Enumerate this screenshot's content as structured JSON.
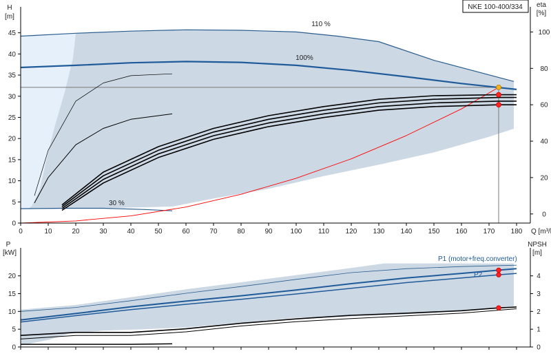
{
  "chart_data": [
    {
      "panel": "head",
      "type": "line",
      "title": "NKE 100-400/334",
      "xlabel": "Q [m³/h]",
      "ylabel_left": "H\n[m]",
      "ylabel_right": "eta\n[%]",
      "x_ticks": [
        0,
        10,
        20,
        30,
        40,
        50,
        60,
        70,
        80,
        90,
        100,
        110,
        120,
        130,
        140,
        150,
        160,
        170,
        180
      ],
      "y_ticks_left": [
        0,
        5,
        10,
        15,
        20,
        25,
        30,
        35,
        40,
        45
      ],
      "y_ticks_right": [
        0,
        20,
        40,
        60,
        80,
        100
      ],
      "xlim": [
        0,
        185
      ],
      "ylim": [
        0,
        49.5
      ],
      "eta_ylim": [
        -5,
        110
      ],
      "grid": false,
      "operating_point": {
        "q": 173.5,
        "h": 32.1
      },
      "envelope": [
        [
          0,
          44.2
        ],
        [
          20,
          44.9
        ],
        [
          40,
          45.4
        ],
        [
          60,
          45.7
        ],
        [
          80,
          45.6
        ],
        [
          100,
          45.2
        ],
        [
          115,
          44.2
        ],
        [
          130,
          42.9
        ],
        [
          150,
          38.5
        ],
        [
          179,
          33.5
        ],
        [
          179,
          22.3
        ],
        [
          170,
          20.4
        ],
        [
          150,
          16.7
        ],
        [
          130,
          13.8
        ],
        [
          110,
          11.1
        ],
        [
          90,
          8.1
        ],
        [
          70,
          5.8
        ],
        [
          55,
          3.9
        ],
        [
          30,
          3.5
        ],
        [
          0,
          3.3
        ]
      ],
      "envelope_inner_cut": [
        [
          0,
          44.2
        ],
        [
          5,
          44.2
        ],
        [
          20,
          44.9
        ],
        [
          19,
          39.0
        ],
        [
          16,
          31.0
        ],
        [
          12,
          22.0
        ],
        [
          9,
          14.0
        ],
        [
          7,
          8.0
        ],
        [
          4,
          4.0
        ],
        [
          3,
          3.5
        ],
        [
          0,
          3.3
        ]
      ],
      "series": [
        {
          "name": "110 %",
          "label": "110 %",
          "color": "#2a5d8f",
          "width": 1.2,
          "points": [
            [
              0,
              44.2
            ],
            [
              20,
              44.9
            ],
            [
              40,
              45.4
            ],
            [
              60,
              45.7
            ],
            [
              80,
              45.6
            ],
            [
              100,
              45.2
            ],
            [
              115,
              44.2
            ],
            [
              130,
              42.9
            ],
            [
              150,
              38.5
            ],
            [
              179,
              33.5
            ]
          ]
        },
        {
          "name": "100 %",
          "label": "100%",
          "color": "#1f5a99",
          "width": 2.2,
          "points": [
            [
              0,
              36.8
            ],
            [
              20,
              37.3
            ],
            [
              40,
              37.9
            ],
            [
              60,
              38.2
            ],
            [
              80,
              38.0
            ],
            [
              100,
              37.3
            ],
            [
              120,
              36.1
            ],
            [
              140,
              34.6
            ],
            [
              160,
              33.0
            ],
            [
              180,
              31.6
            ]
          ]
        },
        {
          "name": "30 %",
          "label": "30 %",
          "color": "#2a5d8f",
          "width": 1.2,
          "points": [
            [
              0,
              3.4
            ],
            [
              15,
              3.5
            ],
            [
              30,
              3.5
            ],
            [
              45,
              3.2
            ],
            [
              55,
              2.9
            ]
          ]
        },
        {
          "name": "system curve",
          "color": "#ff0000",
          "width": 0.9,
          "points": [
            [
              0,
              0
            ],
            [
              20,
              0.5
            ],
            [
              40,
              1.7
            ],
            [
              60,
              3.8
            ],
            [
              80,
              6.8
            ],
            [
              100,
              10.6
            ],
            [
              120,
              15.2
            ],
            [
              140,
              20.7
            ],
            [
              160,
              27.0
            ],
            [
              173.5,
              32.1
            ]
          ]
        },
        {
          "name": "eta thin 1",
          "axis": "eta",
          "color": "#000000",
          "width": 0.7,
          "points": [
            [
              5,
              10
            ],
            [
              10,
              35
            ],
            [
              20,
              62
            ],
            [
              30,
              72
            ],
            [
              40,
              76
            ],
            [
              55,
              77
            ]
          ]
        },
        {
          "name": "eta thin 2",
          "axis": "eta",
          "color": "#000000",
          "width": 1.0,
          "points": [
            [
              5,
              6
            ],
            [
              10,
              20
            ],
            [
              20,
              38
            ],
            [
              30,
              47
            ],
            [
              40,
              52
            ],
            [
              55,
              55
            ]
          ]
        },
        {
          "name": "eta 1",
          "axis": "eta",
          "color": "#000000",
          "width": 1.6,
          "points": [
            [
              15,
              5
            ],
            [
              30,
              23
            ],
            [
              50,
              37
            ],
            [
              70,
              47
            ],
            [
              90,
              54
            ],
            [
              110,
              59
            ],
            [
              130,
              63
            ],
            [
              150,
              65
            ],
            [
              173.5,
              65.5
            ],
            [
              180,
              65.5
            ]
          ]
        },
        {
          "name": "eta 2",
          "axis": "eta",
          "color": "#000000",
          "width": 1.6,
          "points": [
            [
              15,
              4
            ],
            [
              30,
              21
            ],
            [
              50,
              35
            ],
            [
              70,
              45
            ],
            [
              90,
              52
            ],
            [
              110,
              57
            ],
            [
              130,
              61
            ],
            [
              150,
              63
            ],
            [
              173.5,
              64
            ],
            [
              180,
              64
            ]
          ]
        },
        {
          "name": "eta 3",
          "axis": "eta",
          "color": "#000000",
          "width": 1.6,
          "points": [
            [
              15,
              3
            ],
            [
              30,
              19
            ],
            [
              50,
              33
            ],
            [
              70,
              43
            ],
            [
              90,
              50
            ],
            [
              110,
              55
            ],
            [
              130,
              59
            ],
            [
              150,
              61
            ],
            [
              173.5,
              62
            ],
            [
              180,
              62
            ]
          ]
        },
        {
          "name": "eta 4",
          "axis": "eta",
          "color": "#000000",
          "width": 1.6,
          "points": [
            [
              15,
              2
            ],
            [
              30,
              17
            ],
            [
              50,
              31
            ],
            [
              70,
              41
            ],
            [
              90,
              48
            ],
            [
              110,
              53
            ],
            [
              130,
              57
            ],
            [
              150,
              59
            ],
            [
              173.5,
              60
            ],
            [
              180,
              60
            ]
          ]
        }
      ],
      "duty_markers": [
        {
          "q": 173.5,
          "h": 32.1,
          "axis": "head",
          "color": "#f2b21c"
        },
        {
          "q": 173.5,
          "h": 65.5,
          "axis": "eta",
          "color": "#ff2222"
        },
        {
          "q": 173.5,
          "h": 60,
          "axis": "eta",
          "color": "#ff2222"
        }
      ]
    },
    {
      "panel": "power",
      "type": "line",
      "title": "",
      "xlabel": "",
      "ylabel_left": "P\n[kW]",
      "ylabel_right": "NPSH\n[m]",
      "y_ticks_left": [
        0,
        5,
        10,
        15,
        20
      ],
      "y_ticks_right": [
        0,
        1,
        2,
        3,
        4
      ],
      "xlim": [
        0,
        185
      ],
      "ylim": [
        0,
        24
      ],
      "npsh_ylim": [
        0,
        4.8
      ],
      "grid": false,
      "envelope": [
        [
          0,
          10.5
        ],
        [
          20,
          11.8
        ],
        [
          40,
          14.0
        ],
        [
          60,
          16.2
        ],
        [
          80,
          18.2
        ],
        [
          100,
          20.2
        ],
        [
          115,
          21.7
        ],
        [
          132,
          23.5
        ],
        [
          179,
          23.5
        ],
        [
          179,
          11.5
        ],
        [
          160,
          10.0
        ],
        [
          140,
          9.2
        ],
        [
          120,
          8.6
        ],
        [
          100,
          8.2
        ],
        [
          80,
          6.8
        ],
        [
          60,
          5.5
        ],
        [
          45,
          5.0
        ],
        [
          30,
          4.6
        ],
        [
          18,
          3.8
        ],
        [
          10,
          2.0
        ],
        [
          0,
          0.4
        ]
      ],
      "series": [
        {
          "name": "P1 (motor+freq.converter)",
          "label": "P1 (motor+freq.converter)",
          "color": "#1f5a99",
          "width": 2.0,
          "points": [
            [
              0,
              7.6
            ],
            [
              20,
              9.4
            ],
            [
              40,
              11.3
            ],
            [
              60,
              12.9
            ],
            [
              80,
              14.4
            ],
            [
              100,
              16.0
            ],
            [
              120,
              17.8
            ],
            [
              140,
              19.4
            ],
            [
              160,
              20.7
            ],
            [
              173.5,
              21.6
            ],
            [
              180,
              22.0
            ]
          ]
        },
        {
          "name": "P2",
          "label": "P2",
          "color": "#1f5a99",
          "width": 1.5,
          "points": [
            [
              0,
              7.0
            ],
            [
              20,
              8.8
            ],
            [
              40,
              10.5
            ],
            [
              60,
              12.0
            ],
            [
              80,
              13.4
            ],
            [
              100,
              14.9
            ],
            [
              120,
              16.5
            ],
            [
              140,
              18.1
            ],
            [
              160,
              19.4
            ],
            [
              173.5,
              20.3
            ],
            [
              180,
              20.7
            ]
          ]
        },
        {
          "name": "P upper",
          "color": "#2a5d8f",
          "width": 0.8,
          "points": [
            [
              0,
              10.0
            ],
            [
              20,
              11.1
            ],
            [
              40,
              13.0
            ],
            [
              60,
              15.1
            ],
            [
              80,
              17.0
            ],
            [
              100,
              19.0
            ],
            [
              120,
              20.9
            ],
            [
              140,
              22.0
            ],
            [
              160,
              22.6
            ],
            [
              180,
              23.0
            ]
          ]
        },
        {
          "name": "NPSH",
          "axis": "npsh",
          "color": "#000000",
          "width": 1.6,
          "points": [
            [
              0,
              0.65
            ],
            [
              20,
              0.82
            ],
            [
              40,
              0.82
            ],
            [
              60,
              1.02
            ],
            [
              80,
              1.33
            ],
            [
              100,
              1.58
            ],
            [
              120,
              1.78
            ],
            [
              140,
              1.9
            ],
            [
              160,
              2.04
            ],
            [
              173.5,
              2.2
            ],
            [
              180,
              2.25
            ]
          ]
        },
        {
          "name": "NPSH lower",
          "axis": "npsh",
          "color": "#000000",
          "width": 1.0,
          "points": [
            [
              0,
              0.45
            ],
            [
              20,
              0.65
            ],
            [
              40,
              0.65
            ],
            [
              60,
              0.85
            ],
            [
              80,
              1.18
            ],
            [
              100,
              1.42
            ],
            [
              120,
              1.6
            ],
            [
              140,
              1.75
            ],
            [
              160,
              1.9
            ],
            [
              180,
              2.15
            ]
          ]
        },
        {
          "name": "NPSH low speed",
          "axis": "npsh",
          "color": "#000000",
          "width": 1.5,
          "points": [
            [
              0,
              0.15
            ],
            [
              20,
              0.15
            ],
            [
              40,
              0.15
            ],
            [
              55,
              0.18
            ]
          ]
        }
      ],
      "duty_markers": [
        {
          "q": 173.5,
          "h": 21.6,
          "axis": "power",
          "color": "#ff2222"
        },
        {
          "q": 173.5,
          "h": 20.3,
          "axis": "power",
          "color": "#ff2222"
        },
        {
          "q": 173.5,
          "h": 2.2,
          "axis": "npsh",
          "color": "#ff2222"
        }
      ]
    }
  ],
  "colors": {
    "envelope_fill": "#ccd8e4",
    "envelope_inner_fill": "#e6f0fa",
    "curve_blue": "#1f5a99",
    "system_red": "#ff0000",
    "duty_gray": "#7a7a7a",
    "duty_yellow": "#f2b21c",
    "marker_red": "#ff2222"
  }
}
